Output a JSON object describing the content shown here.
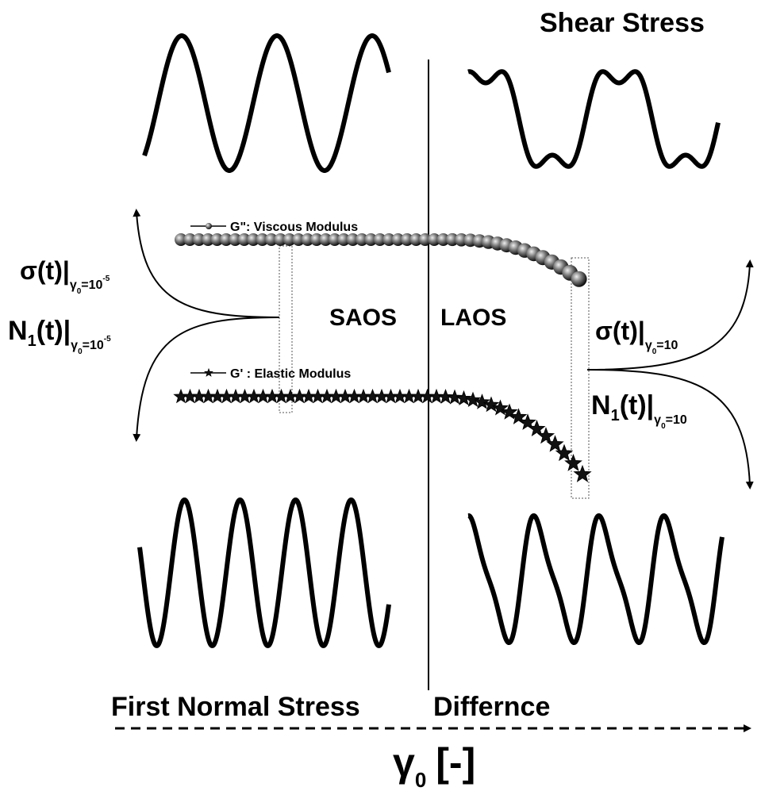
{
  "title": "Shear Stress",
  "viscous_legend": "G\": Viscous Modulus",
  "elastic_legend": "G' : Elastic Modulus",
  "regions": [
    "SAOS",
    "LAOS"
  ],
  "sigma_low": {
    "main": "σ(t)|",
    "sub": "γ",
    "sub_index": "0",
    "cond": "=10",
    "exp": "-5"
  },
  "n1_low": {
    "main": "N",
    "main_index": "1",
    "main_rest": "(t)|",
    "sub": "γ",
    "sub_index": "0",
    "cond": "=10",
    "exp": "-5"
  },
  "sigma_high": {
    "main": "σ(t)|",
    "sub": "γ",
    "sub_index": "0",
    "cond": "=10"
  },
  "n1_high": {
    "main": "N",
    "main_index": "1",
    "main_rest": "(t)|",
    "sub": "γ",
    "sub_index": "0",
    "cond": "=10"
  },
  "bottom_title": [
    "First Normal Stress",
    "Differnce"
  ],
  "axis_label": {
    "symbol": "γ",
    "index": "0",
    "unit": "[-]"
  }
}
